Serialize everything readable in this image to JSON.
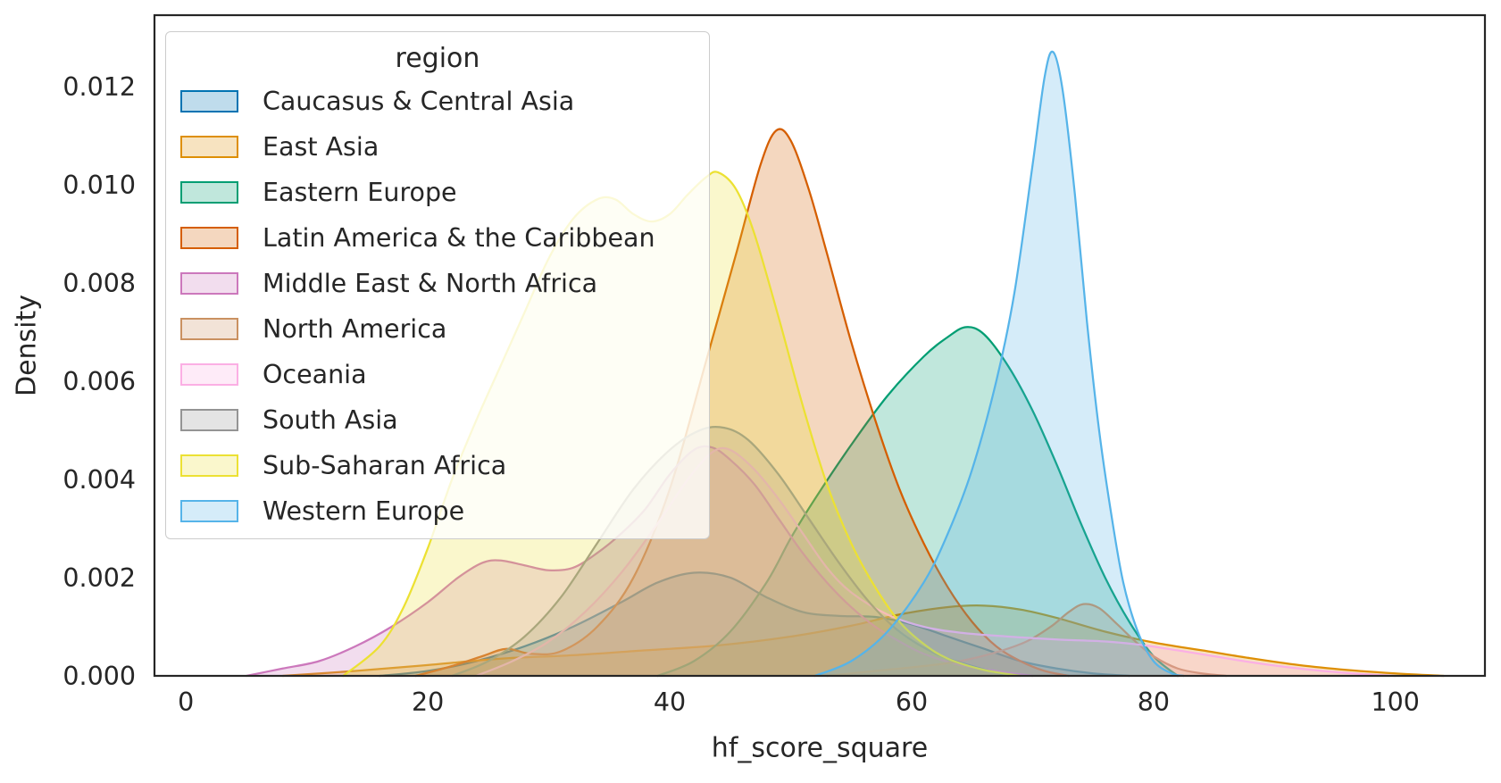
{
  "chart_data": {
    "type": "area",
    "kind": "kde-density",
    "title": "",
    "xlabel": "hf_score_square",
    "ylabel": "Density",
    "legend_title": "region",
    "legend_position": "upper left",
    "grid": false,
    "xlim": [
      -2.6,
      107.4
    ],
    "ylim": [
      0,
      0.01345
    ],
    "xticks": [
      0,
      20,
      40,
      60,
      80,
      100
    ],
    "yticks": [
      0,
      0.002,
      0.004,
      0.006,
      0.008,
      0.01,
      0.012
    ],
    "ytick_labels": [
      "0.000",
      "0.002",
      "0.004",
      "0.006",
      "0.008",
      "0.010",
      "0.012"
    ],
    "fill_opacity": 0.25,
    "line_width": 2.25,
    "series": [
      {
        "name": "Caucasus & Central Asia",
        "color": "#0173B2",
        "points": [
          [
            16,
            0
          ],
          [
            20,
            0.0001
          ],
          [
            24,
            0.0003
          ],
          [
            28,
            0.0006
          ],
          [
            32,
            0.001
          ],
          [
            36,
            0.0015
          ],
          [
            39,
            0.0019
          ],
          [
            42,
            0.0021
          ],
          [
            45,
            0.002
          ],
          [
            48,
            0.0016
          ],
          [
            51,
            0.0013
          ],
          [
            54,
            0.00122
          ],
          [
            57,
            0.0012
          ],
          [
            60,
            0.00105
          ],
          [
            63,
            0.0008
          ],
          [
            66,
            0.00055
          ],
          [
            69,
            0.0003
          ],
          [
            72,
            0.00015
          ],
          [
            75,
            5e-05
          ],
          [
            78,
            0
          ]
        ]
      },
      {
        "name": "East Asia",
        "color": "#DE8F05",
        "points": [
          [
            8,
            0
          ],
          [
            14,
            0.0001
          ],
          [
            20,
            0.00022
          ],
          [
            26,
            0.00035
          ],
          [
            32,
            0.00042
          ],
          [
            38,
            0.00052
          ],
          [
            44,
            0.00062
          ],
          [
            50,
            0.0008
          ],
          [
            55,
            0.00102
          ],
          [
            59,
            0.00125
          ],
          [
            63,
            0.0014
          ],
          [
            66,
            0.00143
          ],
          [
            69,
            0.00135
          ],
          [
            72,
            0.00118
          ],
          [
            76,
            0.0009
          ],
          [
            80,
            0.00068
          ],
          [
            84,
            0.00052
          ],
          [
            88,
            0.00036
          ],
          [
            92,
            0.00022
          ],
          [
            96,
            0.00012
          ],
          [
            100,
            5e-05
          ],
          [
            104,
            0
          ]
        ]
      },
      {
        "name": "Eastern Europe",
        "color": "#029E73",
        "points": [
          [
            39,
            0
          ],
          [
            42,
            0.0003
          ],
          [
            45,
            0.0009
          ],
          [
            48,
            0.0019
          ],
          [
            50,
            0.0028
          ],
          [
            52,
            0.0036
          ],
          [
            55,
            0.0047
          ],
          [
            58,
            0.0057
          ],
          [
            61,
            0.0065
          ],
          [
            63,
            0.0069
          ],
          [
            64.5,
            0.0071
          ],
          [
            66,
            0.00695
          ],
          [
            68,
            0.0063
          ],
          [
            70,
            0.0054
          ],
          [
            72,
            0.0043
          ],
          [
            74,
            0.0031
          ],
          [
            76,
            0.002
          ],
          [
            78,
            0.0011
          ],
          [
            80,
            0.0004
          ],
          [
            82,
            0
          ]
        ]
      },
      {
        "name": "Latin America & the Caribbean",
        "color": "#D55E00",
        "points": [
          [
            19,
            0
          ],
          [
            22,
            0.0002
          ],
          [
            24.5,
            0.0004
          ],
          [
            26.5,
            0.00055
          ],
          [
            28.5,
            0.00045
          ],
          [
            31,
            0.0005
          ],
          [
            34,
            0.001
          ],
          [
            37,
            0.002
          ],
          [
            40,
            0.0038
          ],
          [
            43,
            0.0064
          ],
          [
            45.5,
            0.0086
          ],
          [
            47.5,
            0.0104
          ],
          [
            48.8,
            0.0111
          ],
          [
            50,
            0.0109
          ],
          [
            51.5,
            0.0099
          ],
          [
            53,
            0.0086
          ],
          [
            55,
            0.0068
          ],
          [
            57,
            0.0052
          ],
          [
            59,
            0.0038
          ],
          [
            61,
            0.0027
          ],
          [
            63,
            0.0018
          ],
          [
            65,
            0.0011
          ],
          [
            67,
            0.0006
          ],
          [
            69,
            0.0003
          ],
          [
            71,
            0.0001
          ],
          [
            73,
            0
          ]
        ]
      },
      {
        "name": "Middle East & North Africa",
        "color": "#CC78BC",
        "points": [
          [
            5,
            0
          ],
          [
            8,
            0.00015
          ],
          [
            11,
            0.0003
          ],
          [
            14,
            0.0006
          ],
          [
            17,
            0.001
          ],
          [
            20,
            0.0015
          ],
          [
            22.5,
            0.002
          ],
          [
            24.5,
            0.0023
          ],
          [
            26,
            0.00235
          ],
          [
            28,
            0.00225
          ],
          [
            30,
            0.00215
          ],
          [
            32,
            0.0022
          ],
          [
            34,
            0.0025
          ],
          [
            36,
            0.0029
          ],
          [
            38,
            0.0034
          ],
          [
            40,
            0.0041
          ],
          [
            42,
            0.0046
          ],
          [
            43.5,
            0.00465
          ],
          [
            45,
            0.0044
          ],
          [
            47,
            0.0039
          ],
          [
            49,
            0.0032
          ],
          [
            51,
            0.0025
          ],
          [
            53,
            0.0019
          ],
          [
            55,
            0.0014
          ],
          [
            57,
            0.001
          ],
          [
            59,
            0.0007
          ],
          [
            61,
            0.00045
          ],
          [
            64,
            0.00022
          ],
          [
            67,
            0.0001
          ],
          [
            70,
            0
          ]
        ]
      },
      {
        "name": "North America",
        "color": "#CA9161",
        "points": [
          [
            53,
            0
          ],
          [
            57,
            0.0001
          ],
          [
            61,
            0.0002
          ],
          [
            64,
            0.0003
          ],
          [
            67,
            0.00048
          ],
          [
            69.5,
            0.0007
          ],
          [
            71.5,
            0.001
          ],
          [
            73,
            0.0013
          ],
          [
            74.2,
            0.00146
          ],
          [
            75.5,
            0.00138
          ],
          [
            77,
            0.00105
          ],
          [
            78.5,
            0.0007
          ],
          [
            80,
            0.0004
          ],
          [
            82,
            0.00015
          ],
          [
            84,
            5e-05
          ],
          [
            86,
            0
          ]
        ]
      },
      {
        "name": "Oceania",
        "color": "#FBAFE4",
        "points": [
          [
            24,
            0
          ],
          [
            27,
            0.0003
          ],
          [
            30,
            0.0007
          ],
          [
            33,
            0.0013
          ],
          [
            36,
            0.0021
          ],
          [
            39,
            0.0031
          ],
          [
            41.5,
            0.004
          ],
          [
            43.5,
            0.00455
          ],
          [
            45,
            0.0046
          ],
          [
            47,
            0.0042
          ],
          [
            49,
            0.0036
          ],
          [
            51,
            0.0029
          ],
          [
            53,
            0.0022
          ],
          [
            55,
            0.0017
          ],
          [
            58,
            0.00125
          ],
          [
            61,
            0.001
          ],
          [
            64,
            0.00088
          ],
          [
            68,
            0.0008
          ],
          [
            72,
            0.00074
          ],
          [
            76,
            0.0007
          ],
          [
            79,
            0.00063
          ],
          [
            82,
            0.00052
          ],
          [
            85,
            0.0004
          ],
          [
            88,
            0.00028
          ],
          [
            91,
            0.00018
          ],
          [
            94,
            0.0001
          ],
          [
            97,
            4e-05
          ],
          [
            100,
            0
          ]
        ]
      },
      {
        "name": "South Asia",
        "color": "#949494",
        "points": [
          [
            22,
            0
          ],
          [
            25,
            0.0003
          ],
          [
            28,
            0.0008
          ],
          [
            31,
            0.0016
          ],
          [
            34,
            0.0027
          ],
          [
            37,
            0.0038
          ],
          [
            40,
            0.0046
          ],
          [
            42.5,
            0.005
          ],
          [
            44.5,
            0.00505
          ],
          [
            46.5,
            0.0048
          ],
          [
            49,
            0.0041
          ],
          [
            51.5,
            0.0032
          ],
          [
            54,
            0.0023
          ],
          [
            56.5,
            0.0015
          ],
          [
            59,
            0.0009
          ],
          [
            62,
            0.00045
          ],
          [
            65,
            0.0002
          ],
          [
            68,
            0
          ]
        ]
      },
      {
        "name": "Sub-Saharan Africa",
        "color": "#ECE133",
        "points": [
          [
            13,
            0
          ],
          [
            16,
            0.0006
          ],
          [
            18,
            0.0014
          ],
          [
            20,
            0.0026
          ],
          [
            22,
            0.004
          ],
          [
            24,
            0.0052
          ],
          [
            26,
            0.0063
          ],
          [
            28,
            0.0074
          ],
          [
            30,
            0.0085
          ],
          [
            32,
            0.0093
          ],
          [
            34,
            0.0097
          ],
          [
            35.5,
            0.0097
          ],
          [
            37,
            0.0094
          ],
          [
            38.5,
            0.00925
          ],
          [
            40,
            0.0094
          ],
          [
            41.5,
            0.0098
          ],
          [
            43,
            0.01015
          ],
          [
            44,
            0.01025
          ],
          [
            45.5,
            0.0099
          ],
          [
            47,
            0.009
          ],
          [
            49,
            0.0073
          ],
          [
            51,
            0.0055
          ],
          [
            53,
            0.0039
          ],
          [
            55,
            0.0027
          ],
          [
            57,
            0.0018
          ],
          [
            59,
            0.0011
          ],
          [
            61,
            0.00065
          ],
          [
            63,
            0.00035
          ],
          [
            66,
            0.00012
          ],
          [
            69,
            0
          ]
        ]
      },
      {
        "name": "Western Europe",
        "color": "#56B4E9",
        "points": [
          [
            52,
            0
          ],
          [
            55,
            0.0003
          ],
          [
            58,
            0.0009
          ],
          [
            61,
            0.0019
          ],
          [
            63,
            0.0029
          ],
          [
            65,
            0.0042
          ],
          [
            67,
            0.006
          ],
          [
            68.5,
            0.0078
          ],
          [
            70,
            0.0104
          ],
          [
            71,
            0.0122
          ],
          [
            71.7,
            0.0127
          ],
          [
            72.5,
            0.0119
          ],
          [
            73.5,
            0.0098
          ],
          [
            74.5,
            0.0072
          ],
          [
            75.5,
            0.005
          ],
          [
            76.5,
            0.0033
          ],
          [
            77.5,
            0.0019
          ],
          [
            78.7,
            0.0009
          ],
          [
            80,
            0.0003
          ],
          [
            81.5,
            5e-05
          ],
          [
            82.5,
            0
          ]
        ]
      }
    ]
  },
  "colors": {
    "text": "#262626",
    "spine": "#262626",
    "legend_border": "#cccccc"
  }
}
